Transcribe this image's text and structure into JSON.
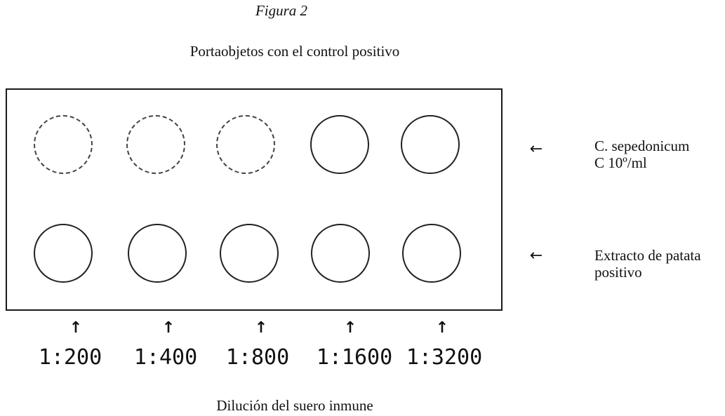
{
  "figure_label": "Figura 2",
  "title": "Portaobjetos con el control positivo",
  "rows": [
    {
      "label_line1": "C. sepedonicum",
      "label_line2": "C 10º/ml",
      "arrow": "←"
    },
    {
      "label_line1": "Extracto de patata",
      "label_line2": "positivo",
      "arrow": "←"
    }
  ],
  "dilutions": [
    {
      "label": "1:200",
      "arrow": "↑"
    },
    {
      "label": "1:400",
      "arrow": "↑"
    },
    {
      "label": "1:800",
      "arrow": "↑"
    },
    {
      "label": "1:1600",
      "arrow": "↑"
    },
    {
      "label": "1:3200",
      "arrow": "↑"
    }
  ],
  "axis_title": "Dilución del suero inmune"
}
